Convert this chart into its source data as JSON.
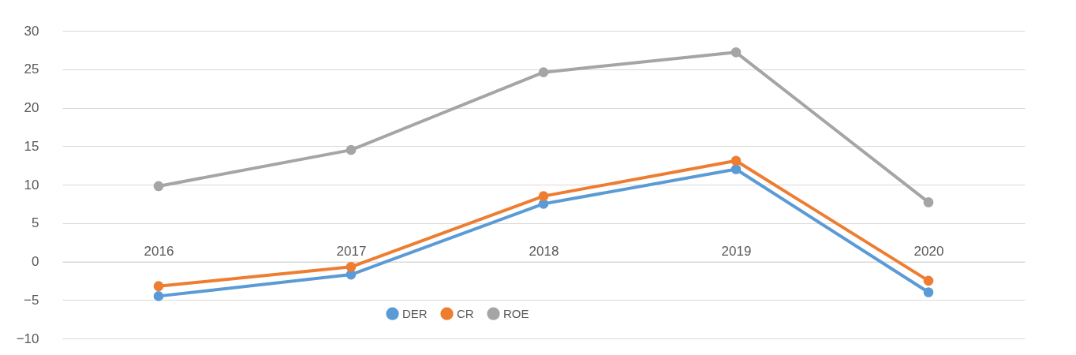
{
  "chart_data": {
    "type": "line",
    "categories": [
      "2016",
      "2017",
      "2018",
      "2019",
      "2020"
    ],
    "series": [
      {
        "name": "DER",
        "color": "#5b9bd5",
        "values": [
          -4.5,
          -1.7,
          7.5,
          12,
          -4
        ]
      },
      {
        "name": "CR",
        "color": "#ed7d31",
        "values": [
          -3.2,
          -0.7,
          8.5,
          13.1,
          -2.5
        ]
      },
      {
        "name": "ROE",
        "color": "#a5a5a5",
        "values": [
          9.8,
          14.5,
          24.6,
          27.2,
          7.7
        ]
      }
    ],
    "ylim": [
      -10,
      30
    ],
    "yticks": [
      -10,
      -5,
      0,
      5,
      10,
      15,
      20,
      25,
      30
    ],
    "grid": "y",
    "legend": "bottom",
    "marker": "circle",
    "line_style": "solid"
  }
}
